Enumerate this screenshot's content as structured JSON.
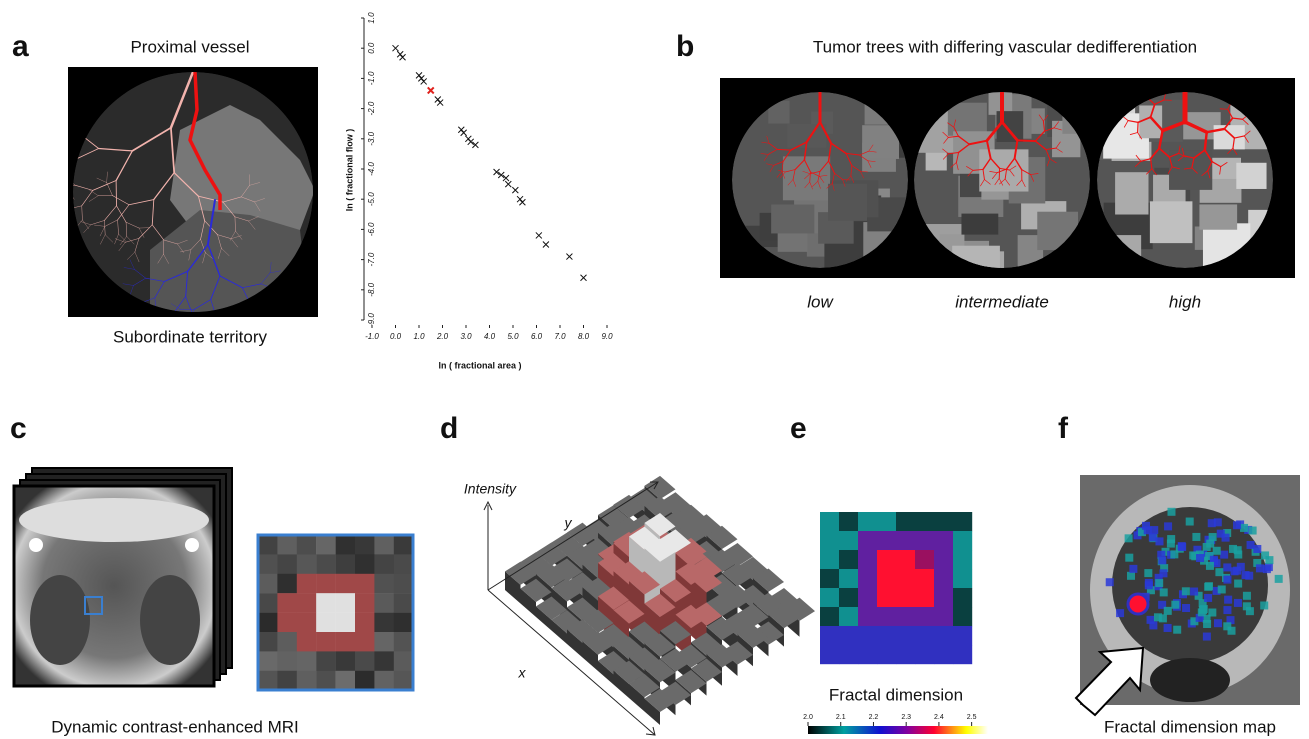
{
  "panel_a": {
    "label": "a",
    "title": "Proximal vessel",
    "caption": "Subordinate territory",
    "plot": {
      "type": "scatter",
      "xlabel": "ln ( fractional area )",
      "ylabel": "ln ( fractional flow )",
      "marker": "x",
      "xlim": [
        -1.0,
        9.0
      ],
      "ylim": [
        -9.0,
        1.0
      ],
      "xticks": [
        {
          "value": -1,
          "label": "-1.0"
        },
        {
          "value": 0,
          "label": "0.0"
        },
        {
          "value": 1,
          "label": "1.0"
        },
        {
          "value": 2,
          "label": "2.0"
        },
        {
          "value": 3,
          "label": "3.0"
        },
        {
          "value": 4,
          "label": "4.0"
        },
        {
          "value": 5,
          "label": "5.0"
        },
        {
          "value": 6,
          "label": "6.0"
        },
        {
          "value": 7,
          "label": "7.0"
        },
        {
          "value": 8,
          "label": "8.0"
        },
        {
          "value": 9,
          "label": "9.0"
        }
      ],
      "yticks": [
        {
          "value": 1,
          "label": "1.0"
        },
        {
          "value": 0,
          "label": "0.0"
        },
        {
          "value": -1,
          "label": "-1.0"
        },
        {
          "value": -2,
          "label": "-2.0"
        },
        {
          "value": -3,
          "label": "-3.0"
        },
        {
          "value": -4,
          "label": "-4.0"
        },
        {
          "value": -5,
          "label": "-5.0"
        },
        {
          "value": -6,
          "label": "-6.0"
        },
        {
          "value": -7,
          "label": "-7.0"
        },
        {
          "value": -8,
          "label": "-8.0"
        },
        {
          "value": -9,
          "label": "-9.0"
        }
      ],
      "series": [
        {
          "color": "#111111",
          "x": [
            0.0,
            0.2,
            0.3,
            1.0,
            1.1,
            1.2,
            1.8,
            1.9,
            2.8,
            2.9,
            3.1,
            3.2,
            3.4,
            4.3,
            4.5,
            4.7,
            4.8,
            5.1,
            5.3,
            5.4,
            6.1,
            6.4,
            7.4,
            8.0
          ],
          "y": [
            0.0,
            -0.2,
            -0.3,
            -0.9,
            -1.0,
            -1.1,
            -1.7,
            -1.8,
            -2.7,
            -2.8,
            -3.0,
            -3.1,
            -3.2,
            -4.1,
            -4.2,
            -4.3,
            -4.5,
            -4.7,
            -5.0,
            -5.1,
            -6.2,
            -6.5,
            -6.9,
            -7.6
          ]
        },
        {
          "color": "#e0201b",
          "x": [
            1.5
          ],
          "y": [
            -1.4
          ]
        }
      ]
    }
  },
  "panel_b": {
    "label": "b",
    "title": "Tumor trees with differing vascular dedifferentiation",
    "levels": [
      "low",
      "intermediate",
      "high"
    ]
  },
  "panel_c": {
    "label": "c",
    "caption": "Dynamic contrast-enhanced MRI"
  },
  "panel_d": {
    "label": "d",
    "axes": {
      "z": "Intensity",
      "y": "y",
      "x": "x"
    }
  },
  "panel_e": {
    "label": "e",
    "caption": "Fractal dimension",
    "colorbar": {
      "lim": [
        2.0,
        2.55
      ],
      "ticks": [
        {
          "value": 2.0,
          "label": "2.0"
        },
        {
          "value": 2.1,
          "label": "2.1"
        },
        {
          "value": 2.2,
          "label": "2.2"
        },
        {
          "value": 2.3,
          "label": "2.3"
        },
        {
          "value": 2.4,
          "label": "2.4"
        },
        {
          "value": 2.5,
          "label": "2.5"
        }
      ]
    }
  },
  "panel_f": {
    "label": "f",
    "caption": "Fractal dimension map"
  }
}
